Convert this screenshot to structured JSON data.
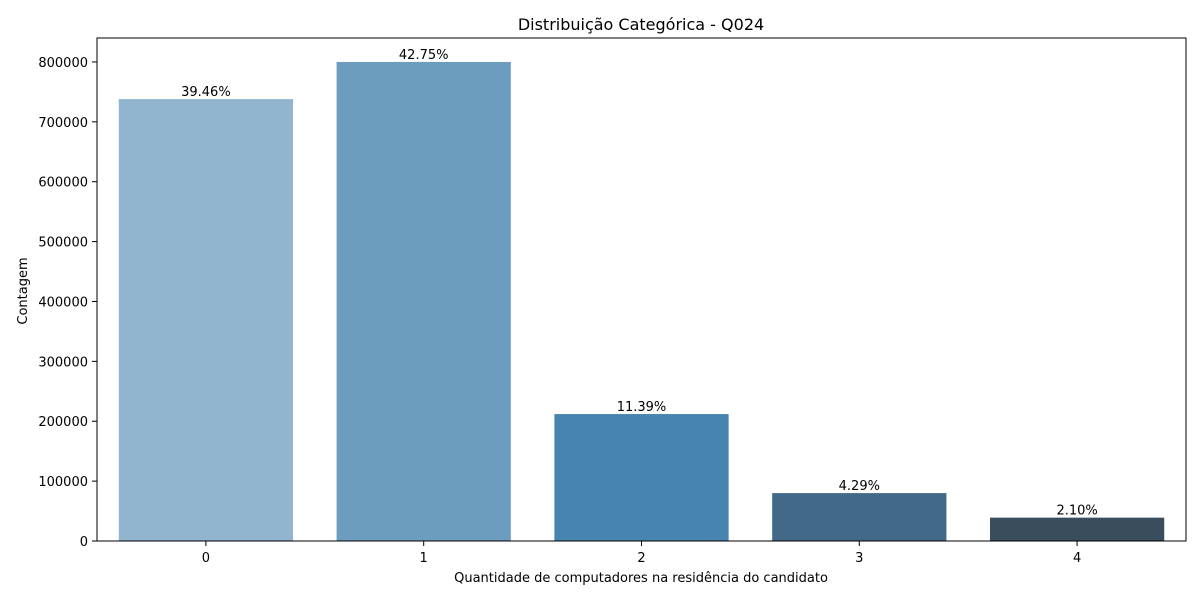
{
  "chart_data": {
    "type": "bar",
    "title": "Distribuição Categórica - Q024",
    "xlabel": "Quantidade de computadores na residência do candidato",
    "ylabel": "Contagem",
    "categories": [
      "0",
      "1",
      "2",
      "3",
      "4"
    ],
    "values": [
      738000,
      800000,
      212000,
      80000,
      39000
    ],
    "data_labels": [
      "39.46%",
      "42.75%",
      "11.39%",
      "4.29%",
      "2.10%"
    ],
    "colors": [
      "#91b4cf",
      "#6c9dbf",
      "#4884b0",
      "#426a88",
      "#3a4d5c"
    ],
    "ylim": [
      0,
      840000
    ],
    "yticks": [
      0,
      100000,
      200000,
      300000,
      400000,
      500000,
      600000,
      700000,
      800000
    ],
    "ytick_labels": [
      "0",
      "100000",
      "200000",
      "300000",
      "400000",
      "500000",
      "600000",
      "700000",
      "800000"
    ],
    "grid": false
  }
}
